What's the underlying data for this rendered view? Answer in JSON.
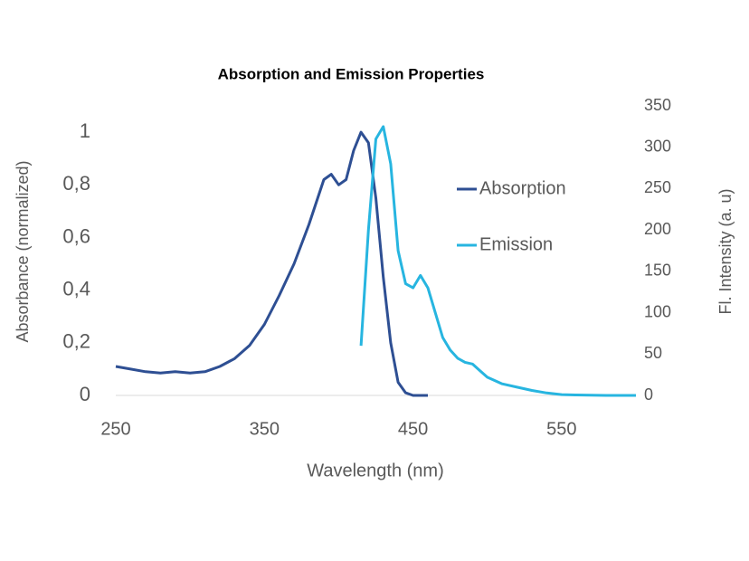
{
  "chart_data": {
    "type": "line",
    "title": "Absorption and Emission Properties",
    "x_label": "Wavelength (nm)",
    "y_label": "Absorbance (normalized)",
    "y2_label": "Fl. Intensity (a. u)",
    "xlim": [
      250,
      600
    ],
    "xticks": [
      250,
      350,
      450,
      550
    ],
    "ylim": [
      0,
      1.1
    ],
    "yticks": [
      0,
      {
        "value": 0.2,
        "label": "0,2"
      },
      {
        "value": 0.4,
        "label": "0,4"
      },
      {
        "value": 0.6,
        "label": "0,6"
      },
      {
        "value": 0.8,
        "label": "0,8"
      },
      1
    ],
    "y2lim": [
      0,
      350
    ],
    "y2ticks": [
      0,
      50,
      100,
      150,
      200,
      250,
      300,
      350
    ],
    "grid": false,
    "legend": "right",
    "series": [
      {
        "name": "Absorption",
        "color": "#2e4f93",
        "x": [
          250,
          260,
          270,
          280,
          290,
          300,
          310,
          320,
          330,
          340,
          350,
          360,
          370,
          380,
          390,
          395,
          400,
          405,
          410,
          415,
          420,
          425,
          430,
          435,
          440,
          445,
          450,
          460
        ],
        "values": [
          0.11,
          0.1,
          0.09,
          0.085,
          0.09,
          0.085,
          0.09,
          0.11,
          0.14,
          0.19,
          0.27,
          0.38,
          0.5,
          0.65,
          0.82,
          0.84,
          0.8,
          0.82,
          0.93,
          1.0,
          0.96,
          0.75,
          0.45,
          0.2,
          0.05,
          0.01,
          0,
          0
        ]
      },
      {
        "name": "Emission",
        "color": "#27b5e0",
        "axis": "y2",
        "x": [
          415,
          420,
          425,
          430,
          435,
          440,
          445,
          450,
          455,
          460,
          465,
          470,
          475,
          480,
          485,
          490,
          495,
          500,
          510,
          520,
          530,
          540,
          550,
          560,
          580,
          600
        ],
        "values": [
          60,
          200,
          310,
          325,
          280,
          175,
          135,
          130,
          145,
          130,
          100,
          70,
          55,
          45,
          40,
          38,
          30,
          22,
          14,
          10,
          6,
          3,
          1,
          0.5,
          0,
          0
        ]
      }
    ]
  }
}
